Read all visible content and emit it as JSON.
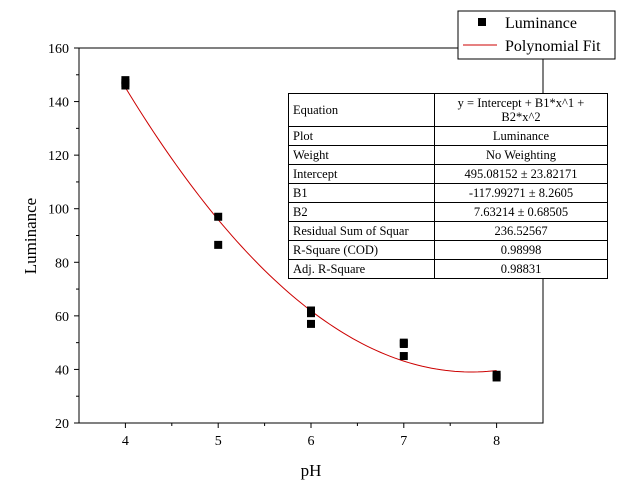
{
  "chart_data": {
    "type": "scatter",
    "xlabel": "pH",
    "ylabel": "Luminance",
    "xlim": [
      3.5,
      8.5
    ],
    "ylim": [
      20,
      160
    ],
    "x_ticks": [
      "4",
      "5",
      "6",
      "7",
      "8"
    ],
    "y_ticks": [
      "20",
      "40",
      "60",
      "80",
      "100",
      "120",
      "140",
      "160"
    ],
    "grid": false,
    "legend_position": "top-right",
    "series": [
      {
        "name": "Luminance",
        "marker": "square",
        "color": "#000000",
        "x": [
          4,
          4,
          4,
          5,
          5,
          6,
          6,
          6,
          7,
          7,
          7,
          8,
          8
        ],
        "y": [
          148,
          147,
          146,
          97,
          86.5,
          62,
          61,
          57,
          50,
          49.5,
          45,
          38,
          37
        ]
      }
    ],
    "fit": {
      "name": "Polynomial Fit",
      "color": "#cc0000",
      "intercept": 495.08152,
      "b1": -117.99271,
      "b2": 7.63214,
      "x_range": [
        4,
        8
      ]
    },
    "fit_table": [
      {
        "key": "Equation",
        "value": "y = Intercept + B1*x^1 + B2*x^2"
      },
      {
        "key": "Plot",
        "value": "Luminance"
      },
      {
        "key": "Weight",
        "value": "No Weighting"
      },
      {
        "key": "Intercept",
        "value": "495.08152 ± 23.82171"
      },
      {
        "key": "B1",
        "value": "-117.99271 ± 8.2605"
      },
      {
        "key": "B2",
        "value": "7.63214 ± 0.68505"
      },
      {
        "key": "Residual Sum of Squar",
        "value": "236.52567"
      },
      {
        "key": "R-Square (COD)",
        "value": "0.98998"
      },
      {
        "key": "Adj. R-Square",
        "value": "0.98831"
      }
    ]
  }
}
